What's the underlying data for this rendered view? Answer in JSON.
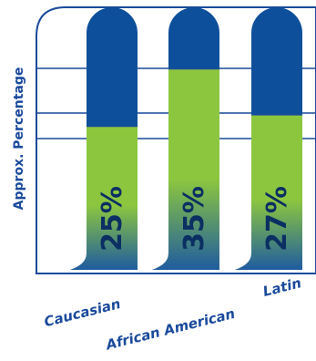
{
  "chart_data": {
    "type": "bar",
    "ylabel": "Approx. Percentage",
    "categories": [
      "Caucasian",
      "African American",
      "Latin"
    ],
    "values": [
      25,
      35,
      27
    ],
    "value_labels": [
      "25%",
      "35%",
      "27%"
    ],
    "ylim": [
      0,
      40
    ],
    "grid": true,
    "colors": {
      "frame": "#1a4a9c",
      "tube": "#0d4f9a",
      "fill_top": "#8cc63f",
      "fill_bottom": "#1f5c9f",
      "label": "#1a4a9c",
      "value_text": "#0b2f63"
    }
  }
}
